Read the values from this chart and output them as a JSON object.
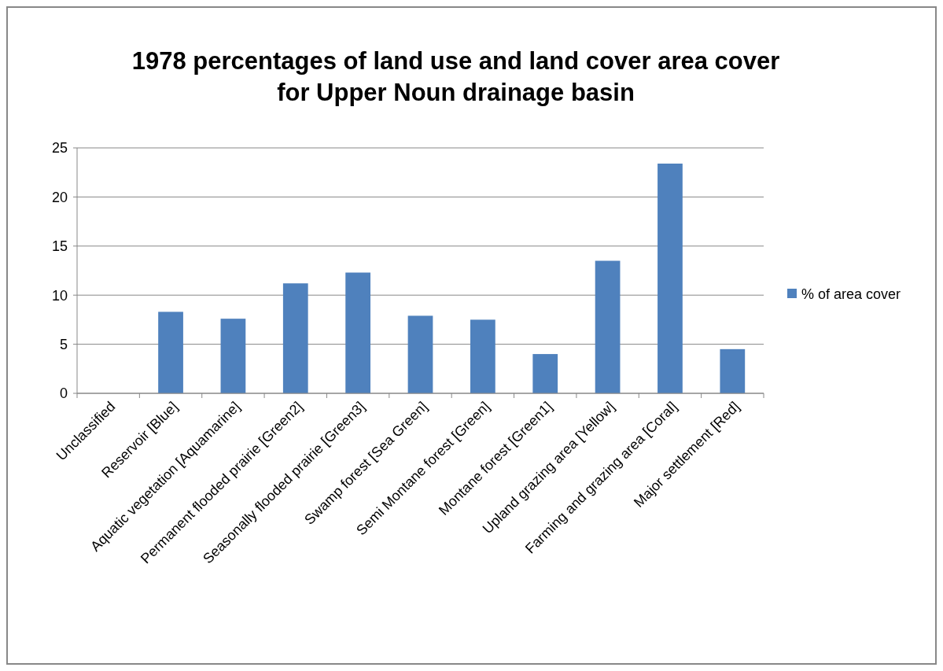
{
  "chart_data": {
    "type": "bar",
    "title": "1978 percentages of land use and land cover area cover for Upper Noun drainage basin",
    "categories": [
      "Unclassified",
      "Reservoir [Blue]",
      "Aquatic vegetation [Aquamarine]",
      "Permanent flooded prairie [Green2]",
      "Seasonally flooded prairie [Green3]",
      "Swamp forest  [Sea Green]",
      "Semi Montane forest [Green]",
      "Montane forest [Green1]",
      "Upland grazing area [Yellow]",
      "Farming and grazing area [Coral]",
      "Major settlement [Red]"
    ],
    "series": [
      {
        "name": "% of area cover",
        "color": "#4f81bd",
        "values": [
          0,
          8.3,
          7.6,
          11.2,
          12.3,
          7.9,
          7.5,
          4.0,
          13.5,
          23.4,
          4.5
        ]
      }
    ],
    "ylim": [
      0,
      25
    ],
    "yticks": [
      0,
      5,
      10,
      15,
      20,
      25
    ],
    "grid": "y",
    "legend": "right"
  }
}
